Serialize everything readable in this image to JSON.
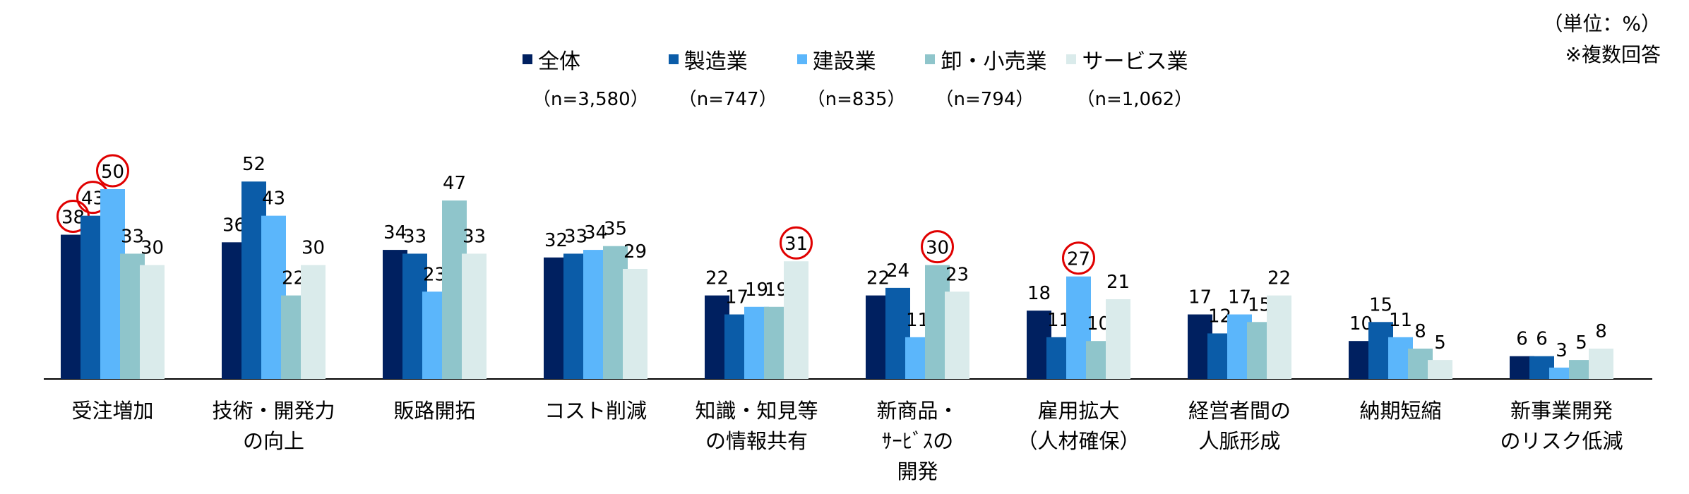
{
  "chart_data": {
    "type": "bar",
    "unit_note": "（単位：%）",
    "multi_note": "※複数回答",
    "categories": [
      [
        "受注増加"
      ],
      [
        "技術・開発力",
        "の向上"
      ],
      [
        "販路開拓"
      ],
      [
        "コスト削減"
      ],
      [
        "知識・知見等",
        "の情報共有"
      ],
      [
        "新商品・",
        "ｻｰﾋﾞｽの",
        "開発"
      ],
      [
        "雇用拡大",
        "（人材確保）"
      ],
      [
        "経営者間の",
        "人脈形成"
      ],
      [
        "納期短縮"
      ],
      [
        "新事業開発",
        "のリスク低減"
      ]
    ],
    "series": [
      {
        "name": "全体",
        "n": "（n=3,580）",
        "color": "#002060",
        "values": [
          38,
          36,
          34,
          32,
          22,
          22,
          18,
          17,
          10,
          6
        ]
      },
      {
        "name": "製造業",
        "n": "（n=747）",
        "color": "#0B5CA8",
        "values": [
          43,
          52,
          33,
          33,
          17,
          24,
          11,
          12,
          15,
          6
        ]
      },
      {
        "name": "建設業",
        "n": "（n=835）",
        "color": "#5BB6FB",
        "values": [
          50,
          43,
          23,
          34,
          19,
          11,
          27,
          17,
          11,
          3
        ]
      },
      {
        "name": "卸・小売業",
        "n": "（n=794）",
        "color": "#8FC5CB",
        "values": [
          33,
          22,
          47,
          35,
          19,
          30,
          10,
          15,
          8,
          5
        ]
      },
      {
        "name": "サービス業",
        "n": "（n=1,062）",
        "color": "#DAEBEB",
        "values": [
          30,
          30,
          33,
          29,
          31,
          23,
          21,
          22,
          5,
          8
        ]
      }
    ],
    "highlighted": [
      [
        0,
        0
      ],
      [
        0,
        1
      ],
      [
        0,
        2
      ],
      [
        4,
        4
      ],
      [
        5,
        3
      ],
      [
        6,
        2
      ]
    ],
    "highlight_color": "#E00000",
    "ylim": [
      0,
      60
    ],
    "grid": false,
    "legend_position": "top-center"
  }
}
